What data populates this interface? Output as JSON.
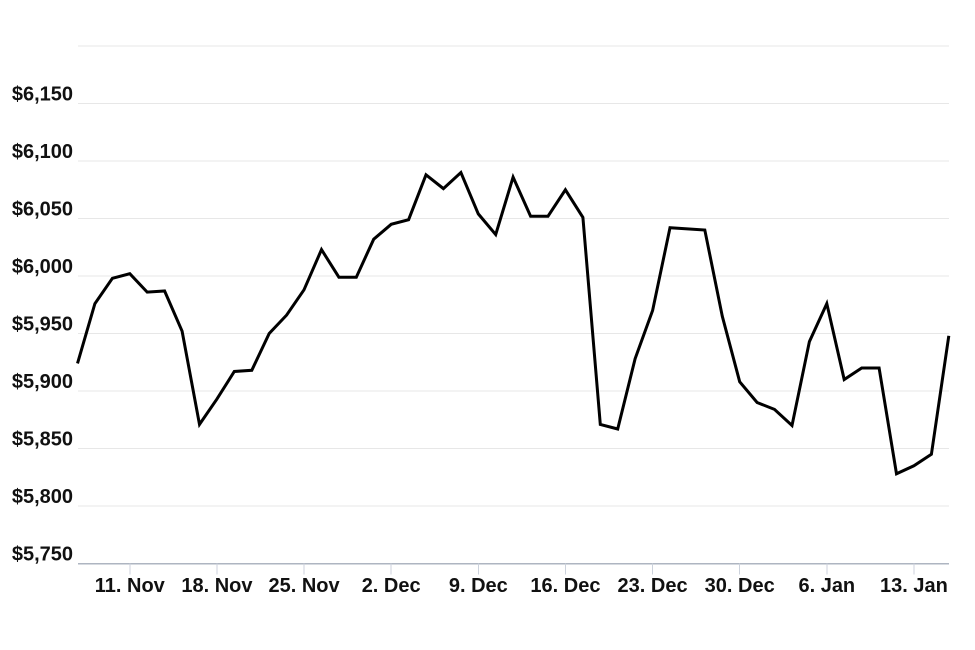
{
  "chart_data": {
    "type": "line",
    "title": "",
    "legend": "none",
    "grid": "horizontal-only",
    "series": [
      {
        "name": "price",
        "color": "#000000",
        "dates": [
          "6. Nov",
          "7. Nov",
          "8. Nov",
          "11. Nov",
          "12. Nov",
          "13. Nov",
          "14. Nov",
          "15. Nov",
          "18. Nov",
          "19. Nov",
          "20. Nov",
          "21. Nov",
          "22. Nov",
          "25. Nov",
          "26. Nov",
          "27. Nov",
          "28. Nov",
          "29. Nov",
          "2. Dec",
          "3. Dec",
          "4. Dec",
          "5. Dec",
          "6. Dec",
          "9. Dec",
          "10. Dec",
          "11. Dec",
          "12. Dec",
          "13. Dec",
          "16. Dec",
          "17. Dec",
          "18. Dec",
          "19. Dec",
          "20. Dec",
          "23. Dec",
          "24. Dec",
          "25. Dec",
          "26. Dec",
          "27. Dec",
          "30. Dec",
          "31. Dec",
          "1. Jan",
          "2. Jan",
          "3. Jan",
          "6. Jan",
          "7. Jan",
          "8. Jan",
          "9. Jan",
          "10. Jan",
          "13. Jan",
          "14. Jan",
          "15. Jan"
        ],
        "values": [
          5924,
          5976,
          5998,
          6002,
          5986,
          5987,
          5952,
          5871,
          5893,
          5917,
          5918,
          5950,
          5966,
          5988,
          6023,
          5999,
          5999,
          6032,
          6045,
          6049,
          6088,
          6076,
          6090,
          6054,
          6036,
          6086,
          6052,
          6052,
          6075,
          6051,
          5871,
          5867,
          5928,
          5970,
          6042,
          6041,
          6040,
          5965,
          5908,
          5890,
          5884,
          5870,
          5943,
          5976,
          5910,
          5920,
          5920,
          5828,
          5835,
          5845,
          5948
        ]
      }
    ],
    "x_axis": {
      "tick_labels": [
        "11. Nov",
        "18. Nov",
        "25. Nov",
        "2. Dec",
        "9. Dec",
        "16. Dec",
        "23. Dec",
        "30. Dec",
        "6. Jan",
        "13. Jan"
      ],
      "tick_point_indices": [
        3,
        8,
        13,
        18,
        23,
        28,
        33,
        38,
        43,
        48
      ]
    },
    "y_axis": {
      "tick_values": [
        5750,
        5800,
        5850,
        5900,
        5950,
        6000,
        6050,
        6100,
        6150
      ],
      "tick_labels": [
        "$5,750",
        "$5,800",
        "$5,850",
        "$5,900",
        "$5,950",
        "$6,000",
        "$6,050",
        "$6,100",
        "$6,150"
      ],
      "grid_min": 5750,
      "grid_max": 6200,
      "grid_step": 50
    },
    "ylim": [
      5750,
      6200
    ],
    "colors": {
      "line": "#000000",
      "grid": "#e7e7e7",
      "axis_line": "#aeb5c1",
      "tick": "#ccd2dc",
      "label": "#111111",
      "background": "#ffffff"
    }
  }
}
